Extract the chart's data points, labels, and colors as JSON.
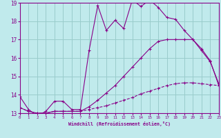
{
  "xlabel": "Windchill (Refroidissement éolien,°C)",
  "bg_color": "#c0eaec",
  "grid_color": "#99cccc",
  "line_color": "#880088",
  "x_min": 0,
  "x_max": 23,
  "y_min": 13,
  "y_max": 19,
  "series1_x": [
    0,
    1,
    2,
    3,
    4,
    5,
    6,
    7,
    8,
    9,
    10,
    11,
    12,
    13,
    14,
    15,
    16,
    17,
    18,
    19,
    20,
    21,
    22,
    23
  ],
  "series1_y": [
    13.9,
    13.2,
    12.85,
    13.1,
    13.65,
    13.65,
    13.2,
    13.2,
    16.4,
    18.85,
    17.5,
    18.05,
    17.6,
    19.15,
    18.8,
    19.15,
    18.75,
    18.2,
    18.1,
    17.5,
    17.0,
    16.4,
    15.8,
    14.6
  ],
  "series2_x": [
    0,
    1,
    2,
    3,
    4,
    5,
    6,
    7,
    8,
    9,
    10,
    11,
    12,
    13,
    14,
    15,
    16,
    17,
    18,
    19,
    20,
    21,
    22,
    23
  ],
  "series2_y": [
    13.3,
    13.1,
    13.0,
    13.0,
    13.1,
    13.1,
    13.1,
    13.1,
    13.2,
    13.3,
    13.4,
    13.55,
    13.7,
    13.85,
    14.05,
    14.2,
    14.35,
    14.5,
    14.6,
    14.65,
    14.65,
    14.6,
    14.55,
    14.5
  ],
  "series3_x": [
    0,
    1,
    2,
    3,
    4,
    5,
    6,
    7,
    8,
    9,
    10,
    11,
    12,
    13,
    14,
    15,
    16,
    17,
    18,
    19,
    20,
    21,
    22,
    23
  ],
  "series3_y": [
    13.3,
    13.1,
    13.0,
    13.0,
    13.1,
    13.1,
    13.1,
    13.1,
    13.35,
    13.7,
    14.1,
    14.5,
    15.0,
    15.5,
    16.0,
    16.5,
    16.9,
    17.0,
    17.0,
    17.0,
    17.0,
    16.5,
    15.85,
    14.5
  ]
}
